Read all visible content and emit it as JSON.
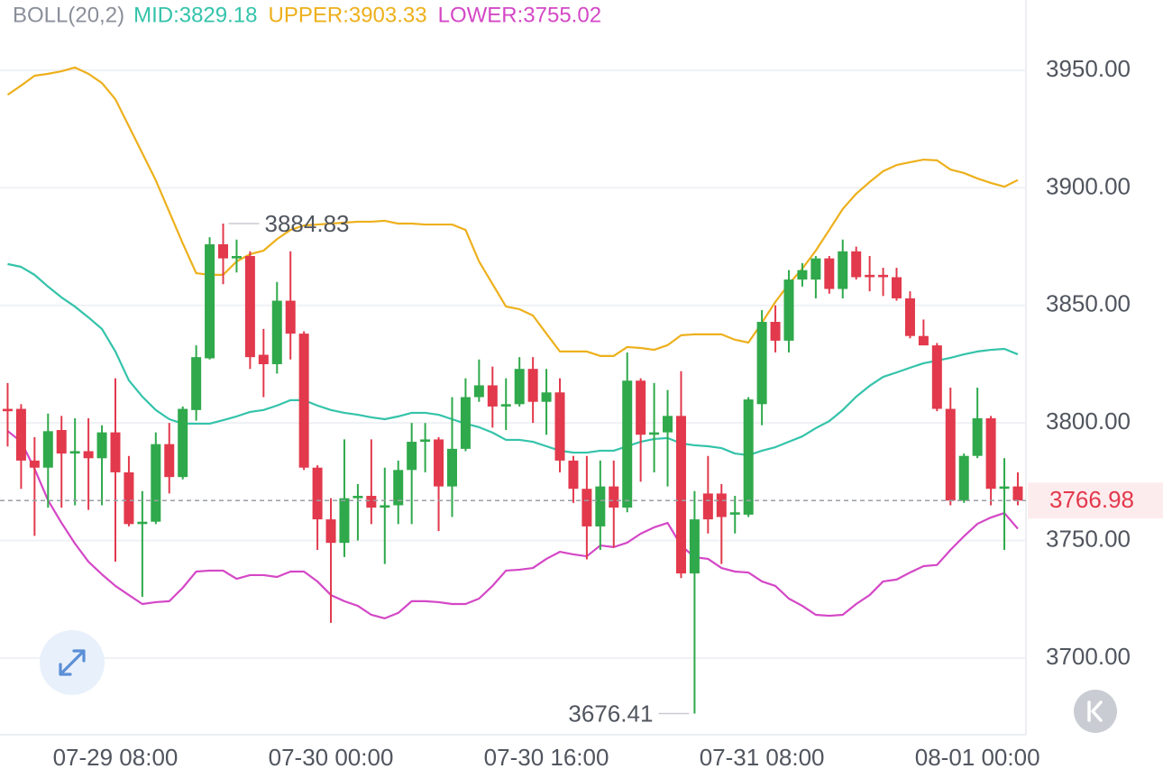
{
  "chart_data": {
    "type": "candlestick",
    "indicator": "BOLL(20,2)",
    "categories": [
      null,
      null,
      null,
      null,
      null,
      null,
      null,
      null,
      "07-29 08:00",
      null,
      null,
      null,
      null,
      null,
      null,
      null,
      null,
      null,
      null,
      null,
      null,
      null,
      null,
      null,
      "07-30 00:00",
      null,
      null,
      null,
      null,
      null,
      null,
      null,
      null,
      null,
      null,
      null,
      null,
      null,
      null,
      null,
      "07-30 16:00",
      null,
      null,
      null,
      null,
      null,
      null,
      null,
      null,
      null,
      null,
      null,
      null,
      null,
      null,
      null,
      "07-31 08:00",
      null,
      null,
      null,
      null,
      null,
      null,
      null,
      null,
      null,
      null,
      null,
      null,
      null,
      null,
      null,
      "08-01 00:00",
      null,
      null,
      null
    ],
    "open": [
      3806,
      3806,
      3784,
      3781,
      3797,
      3787,
      3788,
      3785,
      3796,
      3779,
      3757,
      3758,
      3791,
      3777,
      3805.5,
      3827.5,
      3876,
      3870,
      3871,
      3829,
      3825,
      3852,
      3838,
      3781,
      3759,
      3749,
      3768,
      3769,
      3764,
      3765,
      3780,
      3792,
      3793,
      3773,
      3789,
      3811,
      3816,
      3807,
      3808,
      3823,
      3809,
      3813,
      3784,
      3772,
      3756,
      3773,
      3764,
      3818,
      3795,
      3796,
      3803,
      3736,
      3770,
      3770,
      3761,
      3761,
      3808,
      3843,
      3835,
      3861,
      3861,
      3870,
      3857,
      3873,
      3863,
      3863,
      3862,
      3853,
      3837,
      3833,
      3806,
      3767,
      3786,
      3802,
      3772,
      3773
    ],
    "high": [
      3817,
      3808,
      3794,
      3804,
      3803,
      3802,
      3802,
      3799,
      3819,
      3786,
      3771,
      3796,
      3800,
      3807,
      3833,
      3879,
      3884.83,
      3878,
      3873,
      3840,
      3860,
      3873,
      3839,
      3782,
      3768,
      3793,
      3774,
      3793,
      3781,
      3784,
      3800,
      3800,
      3794,
      3811,
      3819,
      3827,
      3824,
      3819,
      3828,
      3828,
      3823,
      3819,
      3786,
      3786,
      3784,
      3784,
      3830,
      3819,
      3817,
      3814,
      3822,
      3771,
      3786,
      3774,
      3769,
      3811,
      3848,
      3850,
      3865,
      3868,
      3871,
      3871,
      3878,
      3875,
      3871,
      3866,
      3866,
      3856,
      3844,
      3834,
      3815,
      3787,
      3815,
      3803,
      3785,
      3779
    ],
    "low": [
      3790,
      3772,
      3752,
      3764,
      3764,
      3765,
      3763,
      3765,
      3741,
      3756,
      3726,
      3757,
      3770,
      3776,
      3801,
      3827,
      3859,
      3864,
      3823,
      3811,
      3821,
      3827,
      3780,
      3746,
      3715,
      3743,
      3750,
      3757,
      3740,
      3757,
      3757,
      3779,
      3754,
      3760,
      3788,
      3809,
      3798,
      3797,
      3807,
      3800,
      3795,
      3779,
      3766,
      3742,
      3746,
      3747,
      3762,
      3775,
      3779,
      3773,
      3734,
      3676.41,
      3753,
      3740,
      3753,
      3760,
      3799,
      3830,
      3830,
      3858,
      3853,
      3855,
      3853,
      3861,
      3856,
      3854,
      3852,
      3836,
      3833,
      3805,
      3765,
      3766,
      3785,
      3765,
      3746,
      3765
    ],
    "close": [
      3805,
      3784,
      3781,
      3796.5,
      3787,
      3788,
      3785,
      3796,
      3779,
      3757,
      3758,
      3791,
      3777,
      3806,
      3828,
      3876,
      3870,
      3871,
      3828,
      3825,
      3852,
      3838,
      3781,
      3759,
      3749,
      3768,
      3769,
      3764,
      3765,
      3780,
      3792,
      3793,
      3773,
      3789,
      3811,
      3816,
      3807,
      3808,
      3823,
      3809,
      3813,
      3784,
      3772,
      3756,
      3773,
      3764,
      3818,
      3795,
      3796,
      3803,
      3736,
      3759,
      3759,
      3760,
      3762,
      3810,
      3843,
      3835,
      3861,
      3865,
      3870,
      3857,
      3873,
      3862,
      3862,
      3862,
      3853,
      3837,
      3833,
      3806,
      3767,
      3786,
      3802,
      3772,
      3773,
      3766.98
    ],
    "up_color": "#2fa94b",
    "down_color": "#e2394c",
    "series": [
      {
        "name": "MID:3829.18",
        "color": "#34c3aa",
        "values": [
          3867.6,
          3866.4,
          3863.0,
          3858.0,
          3853.4,
          3849.5,
          3844.9,
          3840.0,
          3830.4,
          3818.1,
          3811.2,
          3805.5,
          3801.6,
          3799.7,
          3799.7,
          3799.7,
          3801.2,
          3802.8,
          3804.7,
          3805.5,
          3807.4,
          3809.7,
          3809.7,
          3807.4,
          3805.5,
          3804.3,
          3803.5,
          3802.4,
          3801.6,
          3802.8,
          3804.3,
          3804.3,
          3803.5,
          3801.6,
          3799.7,
          3798.2,
          3795.9,
          3792.8,
          3792.8,
          3792.0,
          3790.1,
          3788.2,
          3787.4,
          3787.4,
          3788.2,
          3788.2,
          3790.1,
          3792.0,
          3793.2,
          3793.6,
          3791.3,
          3790.5,
          3790.1,
          3789.3,
          3787.0,
          3786.3,
          3788.2,
          3789.7,
          3792.0,
          3794.3,
          3797.8,
          3800.8,
          3805.5,
          3811.2,
          3815.8,
          3819.6,
          3821.5,
          3823.5,
          3825.4,
          3826.5,
          3827.7,
          3829.2,
          3830.4,
          3831.1,
          3831.5,
          3829.18
        ]
      },
      {
        "name": "UPPER:3903.33",
        "color": "#edb01c",
        "values": [
          3939.6,
          3943.5,
          3947.7,
          3948.5,
          3949.6,
          3951.2,
          3948.5,
          3944.6,
          3937.7,
          3926.2,
          3914.7,
          3903.2,
          3889.8,
          3876.4,
          3863.7,
          3863.0,
          3863.0,
          3868.7,
          3871.8,
          3873.3,
          3878.2,
          3882.1,
          3884.0,
          3884.4,
          3884.8,
          3885.2,
          3885.6,
          3885.6,
          3886.0,
          3884.8,
          3884.8,
          3884.4,
          3884.4,
          3884.4,
          3882.1,
          3868.7,
          3859.1,
          3849.5,
          3848.4,
          3845.7,
          3838.0,
          3830.4,
          3830.4,
          3830.4,
          3828.5,
          3828.5,
          3832.3,
          3831.9,
          3831.1,
          3833.1,
          3837.3,
          3837.7,
          3837.7,
          3837.7,
          3835.4,
          3834.2,
          3842.6,
          3851.5,
          3859.1,
          3865.6,
          3873.3,
          3882.1,
          3891.0,
          3897.5,
          3902.5,
          3907.1,
          3909.7,
          3910.9,
          3912.0,
          3911.7,
          3907.8,
          3906.3,
          3904.0,
          3902.1,
          3900.5,
          3903.33
        ]
      },
      {
        "name": "LOWER:3755.02",
        "color": "#d447c6",
        "values": [
          3796.6,
          3792.0,
          3780.5,
          3767.1,
          3757.5,
          3748.7,
          3741.0,
          3735.6,
          3730.7,
          3726.8,
          3723.0,
          3723.8,
          3724.2,
          3729.9,
          3736.8,
          3737.2,
          3737.2,
          3733.7,
          3735.3,
          3735.3,
          3734.5,
          3736.8,
          3736.8,
          3732.6,
          3726.8,
          3724.2,
          3722.2,
          3718.4,
          3716.9,
          3719.2,
          3724.2,
          3724.2,
          3723.8,
          3723.0,
          3723.0,
          3725.3,
          3730.7,
          3737.2,
          3737.6,
          3738.3,
          3742.2,
          3745.2,
          3744.1,
          3743.3,
          3747.9,
          3747.2,
          3749.1,
          3752.9,
          3755.6,
          3757.5,
          3747.9,
          3742.9,
          3742.2,
          3738.3,
          3736.8,
          3736.4,
          3732.6,
          3730.7,
          3725.3,
          3722.2,
          3718.4,
          3718.0,
          3718.4,
          3723.0,
          3726.8,
          3732.6,
          3733.4,
          3736.4,
          3739.1,
          3739.6,
          3746.0,
          3751.8,
          3757.1,
          3759.8,
          3761.7,
          3755.02
        ]
      }
    ],
    "ylim": [
      3667.4,
      3979.9
    ],
    "yticks": [
      {
        "value": 3700,
        "label": "3700.00"
      },
      {
        "value": 3750,
        "label": "3750.00"
      },
      {
        "value": 3800,
        "label": "3800.00"
      },
      {
        "value": 3850,
        "label": "3850.00"
      },
      {
        "value": 3900,
        "label": "3900.00"
      },
      {
        "value": 3950,
        "label": "3950.00"
      }
    ],
    "grid": true,
    "last_price_line": true
  }
}
